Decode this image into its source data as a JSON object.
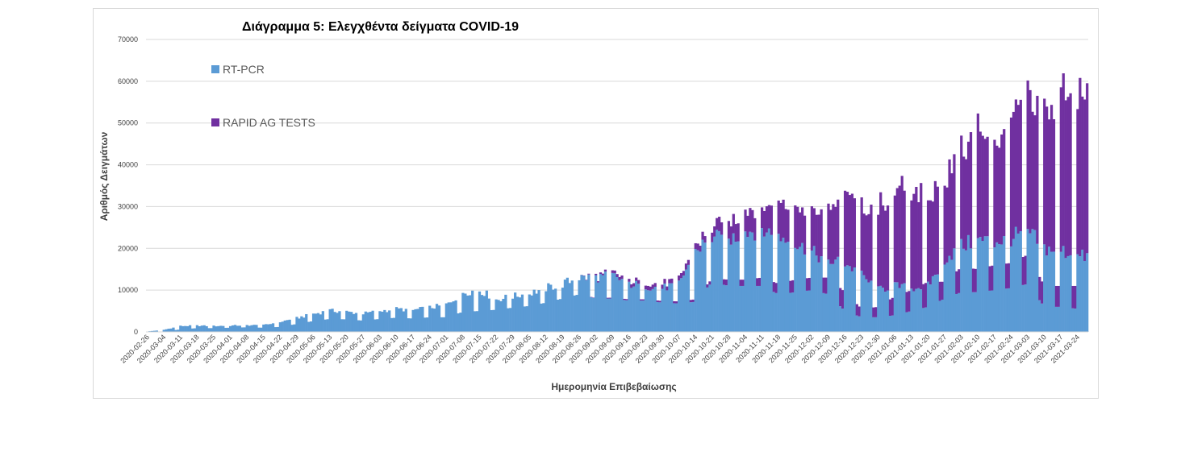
{
  "chart_data": {
    "type": "bar",
    "stacked": true,
    "title": "Διάγραμμα 5: Ελεγχθέντα δείγματα COVID-19",
    "xlabel": "Ημερομηνία Επιβεβαίωσης",
    "ylabel": "Αριθμός Δειγμάτων",
    "ylim": [
      0,
      70000
    ],
    "yticks": [
      0,
      10000,
      20000,
      30000,
      40000,
      50000,
      60000,
      70000
    ],
    "grid": true,
    "legend_position": "top-left",
    "x_start": "2020-02-26",
    "x_end": "2021-03-28",
    "xticks": [
      "2020-02-26",
      "2020-03-04",
      "2020-03-11",
      "2020-03-18",
      "2020-03-25",
      "2020-04-01",
      "2020-04-08",
      "2020-04-15",
      "2020-04-22",
      "2020-04-29",
      "2020-05-06",
      "2020-05-13",
      "2020-05-20",
      "2020-05-27",
      "2020-06-03",
      "2020-06-10",
      "2020-06-17",
      "2020-06-24",
      "2020-07-01",
      "2020-07-08",
      "2020-07-15",
      "2020-07-22",
      "2020-07-29",
      "2020-08-05",
      "2020-08-12",
      "2020-08-19",
      "2020-08-26",
      "2020-09-02",
      "2020-09-09",
      "2020-09-16",
      "2020-09-23",
      "2020-09-30",
      "2020-10-07",
      "2020-10-14",
      "2020-10-21",
      "2020-10-28",
      "2020-11-04",
      "2020-11-11",
      "2020-11-18",
      "2020-11-25",
      "2020-12-02",
      "2020-12-09",
      "2020-12-16",
      "2020-12-23",
      "2020-12-30",
      "2021-01-06",
      "2021-01-13",
      "2021-01-20",
      "2021-01-27",
      "2021-02-03",
      "2021-02-10",
      "2021-02-17",
      "2021-02-24",
      "2021-03-03",
      "2021-03-10",
      "2021-03-17",
      "2021-03-24"
    ],
    "series": [
      {
        "name": "RT-PCR",
        "color": "#5b9bd5",
        "weekly_levels": [
          100,
          500,
          1400,
          1500,
          1400,
          1500,
          1600,
          1600,
          2400,
          3300,
          4300,
          5100,
          4800,
          4400,
          5000,
          5500,
          5200,
          5800,
          6500,
          9500,
          10000,
          7800,
          8500,
          9200,
          10500,
          11500,
          13000,
          13000,
          13500,
          11500,
          11000,
          10500,
          11500,
          19500,
          22500,
          22000,
          24000,
          24500,
          23000,
          21000,
          19000,
          17000,
          16500,
          13500,
          10000,
          11000,
          10500,
          11000,
          17500,
          20500,
          22000,
          21500,
          22500,
          24000,
          20000,
          19500,
          18000
        ],
        "weekly_low": [
          0,
          100,
          600,
          900,
          900,
          1000,
          1100,
          1000,
          1200,
          1900,
          2600,
          3100,
          3000,
          2700,
          3100,
          3400,
          3200,
          3500,
          3500,
          4800,
          5000,
          5300,
          5800,
          6200,
          7000,
          8000,
          9000,
          8000,
          8000,
          7500,
          7500,
          7000,
          6800,
          7200,
          12000,
          11000,
          11000,
          11000,
          9000,
          9500,
          10000,
          9000,
          5000,
          3500,
          3500,
          4000,
          5000,
          6000,
          8000,
          9500,
          9500,
          10000,
          10500,
          11500,
          6000,
          6000,
          5500
        ]
      },
      {
        "name": "RAPID AG TESTS",
        "color": "#7030a0",
        "weekly_levels": [
          0,
          0,
          0,
          0,
          0,
          0,
          0,
          0,
          0,
          0,
          0,
          0,
          0,
          0,
          0,
          0,
          0,
          0,
          0,
          0,
          0,
          0,
          0,
          0,
          0,
          0,
          0,
          300,
          600,
          800,
          900,
          1000,
          1200,
          1500,
          2000,
          4500,
          5000,
          5000,
          8000,
          9500,
          10000,
          13500,
          16500,
          17000,
          19500,
          22000,
          23500,
          21500,
          19500,
          23000,
          27500,
          24000,
          28000,
          32000,
          31000,
          36000,
          38000
        ],
        "weekly_low": [
          0,
          0,
          0,
          0,
          0,
          0,
          0,
          0,
          0,
          0,
          0,
          0,
          0,
          0,
          0,
          0,
          0,
          0,
          0,
          0,
          0,
          0,
          0,
          0,
          0,
          0,
          0,
          100,
          200,
          300,
          300,
          400,
          500,
          600,
          800,
          1500,
          1500,
          2000,
          2500,
          3000,
          3000,
          4000,
          4500,
          2000,
          2500,
          4500,
          5000,
          6000,
          4000,
          6000,
          5500,
          6000,
          6000,
          7000,
          5000,
          5000,
          5500
        ]
      }
    ]
  }
}
